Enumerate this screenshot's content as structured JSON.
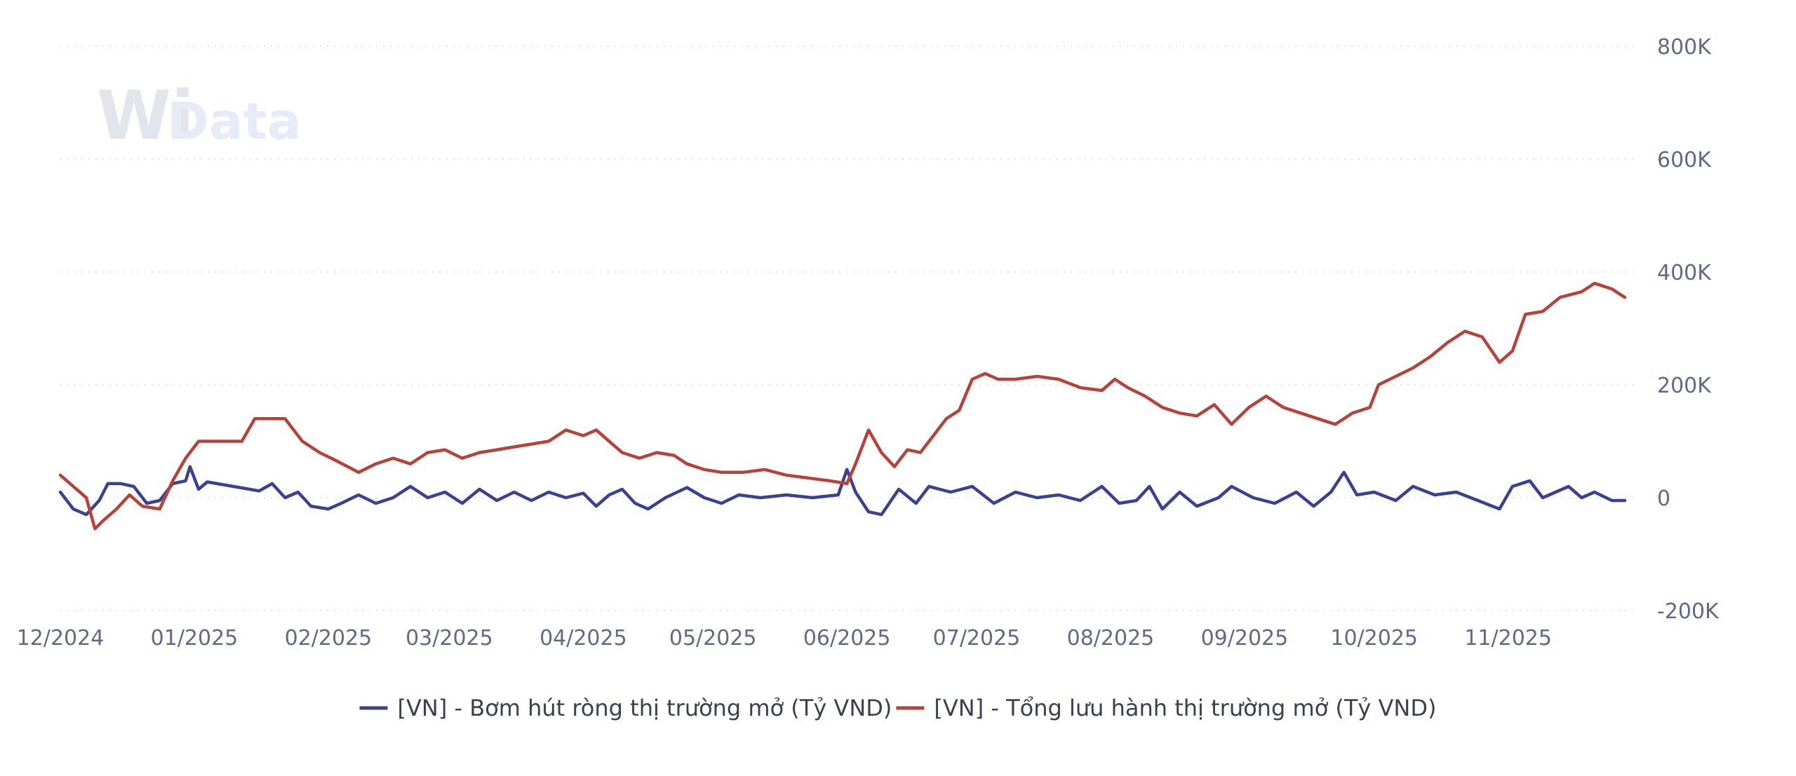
{
  "watermark": {
    "part1": "Wi",
    "part2": "Data"
  },
  "chart_data": {
    "type": "line",
    "ylim": [
      -200000,
      800000
    ],
    "y_ticks": [
      800000,
      600000,
      400000,
      200000,
      0,
      -200000
    ],
    "y_tick_labels": [
      "800K",
      "600K",
      "400K",
      "200K",
      "0",
      "-200K"
    ],
    "x_range": [
      "2024-12-01",
      "2025-11-28"
    ],
    "x_ticks": [
      "2024-12-01",
      "2025-01-01",
      "2025-02-01",
      "2025-03-01",
      "2025-04-01",
      "2025-05-01",
      "2025-06-01",
      "2025-07-01",
      "2025-08-01",
      "2025-09-01",
      "2025-10-01",
      "2025-11-01"
    ],
    "x_tick_labels": [
      "12/2024",
      "01/2025",
      "02/2025",
      "03/2025",
      "04/2025",
      "05/2025",
      "06/2025",
      "07/2025",
      "08/2025",
      "09/2025",
      "10/2025",
      "11/2025"
    ],
    "grid": true,
    "legend_position": "bottom",
    "series": [
      {
        "name": "[VN] - Bơm hút ròng thị trường mở (Tỷ VND)",
        "color": "#3b4191",
        "points": [
          [
            "2024-12-01",
            10000
          ],
          [
            "2024-12-04",
            -20000
          ],
          [
            "2024-12-07",
            -30000
          ],
          [
            "2024-12-10",
            -5000
          ],
          [
            "2024-12-12",
            25000
          ],
          [
            "2024-12-15",
            25000
          ],
          [
            "2024-12-18",
            20000
          ],
          [
            "2024-12-21",
            -10000
          ],
          [
            "2024-12-24",
            -5000
          ],
          [
            "2024-12-27",
            25000
          ],
          [
            "2024-12-30",
            30000
          ],
          [
            "2024-12-31",
            55000
          ],
          [
            "2025-01-02",
            15000
          ],
          [
            "2025-01-04",
            28000
          ],
          [
            "2025-01-10",
            20000
          ],
          [
            "2025-01-16",
            12000
          ],
          [
            "2025-01-19",
            25000
          ],
          [
            "2025-01-22",
            0
          ],
          [
            "2025-01-25",
            10000
          ],
          [
            "2025-01-28",
            -15000
          ],
          [
            "2025-02-01",
            -20000
          ],
          [
            "2025-02-04",
            -10000
          ],
          [
            "2025-02-08",
            5000
          ],
          [
            "2025-02-12",
            -10000
          ],
          [
            "2025-02-16",
            0
          ],
          [
            "2025-02-20",
            20000
          ],
          [
            "2025-02-24",
            0
          ],
          [
            "2025-02-28",
            10000
          ],
          [
            "2025-03-04",
            -10000
          ],
          [
            "2025-03-08",
            15000
          ],
          [
            "2025-03-12",
            -5000
          ],
          [
            "2025-03-16",
            10000
          ],
          [
            "2025-03-20",
            -5000
          ],
          [
            "2025-03-24",
            10000
          ],
          [
            "2025-03-28",
            0
          ],
          [
            "2025-04-01",
            8000
          ],
          [
            "2025-04-04",
            -15000
          ],
          [
            "2025-04-07",
            5000
          ],
          [
            "2025-04-10",
            15000
          ],
          [
            "2025-04-13",
            -10000
          ],
          [
            "2025-04-16",
            -20000
          ],
          [
            "2025-04-20",
            0
          ],
          [
            "2025-04-25",
            18000
          ],
          [
            "2025-04-29",
            0
          ],
          [
            "2025-05-03",
            -10000
          ],
          [
            "2025-05-07",
            5000
          ],
          [
            "2025-05-12",
            0
          ],
          [
            "2025-05-18",
            5000
          ],
          [
            "2025-05-24",
            0
          ],
          [
            "2025-05-30",
            5000
          ],
          [
            "2025-06-01",
            50000
          ],
          [
            "2025-06-03",
            10000
          ],
          [
            "2025-06-06",
            -25000
          ],
          [
            "2025-06-09",
            -30000
          ],
          [
            "2025-06-13",
            15000
          ],
          [
            "2025-06-17",
            -10000
          ],
          [
            "2025-06-20",
            20000
          ],
          [
            "2025-06-25",
            10000
          ],
          [
            "2025-06-30",
            20000
          ],
          [
            "2025-07-05",
            -10000
          ],
          [
            "2025-07-10",
            10000
          ],
          [
            "2025-07-15",
            0
          ],
          [
            "2025-07-20",
            5000
          ],
          [
            "2025-07-25",
            -5000
          ],
          [
            "2025-07-30",
            20000
          ],
          [
            "2025-08-03",
            -10000
          ],
          [
            "2025-08-07",
            -5000
          ],
          [
            "2025-08-10",
            20000
          ],
          [
            "2025-08-13",
            -20000
          ],
          [
            "2025-08-17",
            10000
          ],
          [
            "2025-08-21",
            -15000
          ],
          [
            "2025-08-26",
            0
          ],
          [
            "2025-08-29",
            20000
          ],
          [
            "2025-09-03",
            0
          ],
          [
            "2025-09-08",
            -10000
          ],
          [
            "2025-09-13",
            10000
          ],
          [
            "2025-09-17",
            -15000
          ],
          [
            "2025-09-21",
            10000
          ],
          [
            "2025-09-24",
            45000
          ],
          [
            "2025-09-27",
            5000
          ],
          [
            "2025-10-01",
            10000
          ],
          [
            "2025-10-06",
            -5000
          ],
          [
            "2025-10-10",
            20000
          ],
          [
            "2025-10-15",
            5000
          ],
          [
            "2025-10-20",
            10000
          ],
          [
            "2025-10-25",
            -5000
          ],
          [
            "2025-10-30",
            -20000
          ],
          [
            "2025-11-02",
            20000
          ],
          [
            "2025-11-06",
            30000
          ],
          [
            "2025-11-09",
            0
          ],
          [
            "2025-11-12",
            10000
          ],
          [
            "2025-11-15",
            20000
          ],
          [
            "2025-11-18",
            0
          ],
          [
            "2025-11-21",
            10000
          ],
          [
            "2025-11-25",
            -5000
          ],
          [
            "2025-11-28",
            -5000
          ]
        ]
      },
      {
        "name": "[VN] - Tổng lưu hành thị trường mở (Tỷ VND)",
        "color": "#b5423b",
        "points": [
          [
            "2024-12-01",
            40000
          ],
          [
            "2024-12-04",
            20000
          ],
          [
            "2024-12-07",
            0
          ],
          [
            "2024-12-09",
            -55000
          ],
          [
            "2024-12-11",
            -40000
          ],
          [
            "2024-12-14",
            -20000
          ],
          [
            "2024-12-17",
            5000
          ],
          [
            "2024-12-20",
            -15000
          ],
          [
            "2024-12-24",
            -20000
          ],
          [
            "2024-12-27",
            30000
          ],
          [
            "2024-12-30",
            70000
          ],
          [
            "2025-01-02",
            100000
          ],
          [
            "2025-01-07",
            100000
          ],
          [
            "2025-01-12",
            100000
          ],
          [
            "2025-01-15",
            140000
          ],
          [
            "2025-01-18",
            140000
          ],
          [
            "2025-01-22",
            140000
          ],
          [
            "2025-01-26",
            100000
          ],
          [
            "2025-01-30",
            80000
          ],
          [
            "2025-02-03",
            65000
          ],
          [
            "2025-02-08",
            45000
          ],
          [
            "2025-02-12",
            60000
          ],
          [
            "2025-02-16",
            70000
          ],
          [
            "2025-02-20",
            60000
          ],
          [
            "2025-02-24",
            80000
          ],
          [
            "2025-02-28",
            85000
          ],
          [
            "2025-03-04",
            70000
          ],
          [
            "2025-03-08",
            80000
          ],
          [
            "2025-03-12",
            85000
          ],
          [
            "2025-03-16",
            90000
          ],
          [
            "2025-03-20",
            95000
          ],
          [
            "2025-03-24",
            100000
          ],
          [
            "2025-03-28",
            120000
          ],
          [
            "2025-04-01",
            110000
          ],
          [
            "2025-04-04",
            120000
          ],
          [
            "2025-04-07",
            100000
          ],
          [
            "2025-04-10",
            80000
          ],
          [
            "2025-04-14",
            70000
          ],
          [
            "2025-04-18",
            80000
          ],
          [
            "2025-04-22",
            75000
          ],
          [
            "2025-04-25",
            60000
          ],
          [
            "2025-04-29",
            50000
          ],
          [
            "2025-05-03",
            45000
          ],
          [
            "2025-05-08",
            45000
          ],
          [
            "2025-05-13",
            50000
          ],
          [
            "2025-05-18",
            40000
          ],
          [
            "2025-05-23",
            35000
          ],
          [
            "2025-05-28",
            30000
          ],
          [
            "2025-06-01",
            25000
          ],
          [
            "2025-06-03",
            60000
          ],
          [
            "2025-06-06",
            120000
          ],
          [
            "2025-06-09",
            80000
          ],
          [
            "2025-06-12",
            55000
          ],
          [
            "2025-06-15",
            85000
          ],
          [
            "2025-06-18",
            80000
          ],
          [
            "2025-06-21",
            110000
          ],
          [
            "2025-06-24",
            140000
          ],
          [
            "2025-06-27",
            155000
          ],
          [
            "2025-06-30",
            210000
          ],
          [
            "2025-07-03",
            220000
          ],
          [
            "2025-07-06",
            210000
          ],
          [
            "2025-07-10",
            210000
          ],
          [
            "2025-07-15",
            215000
          ],
          [
            "2025-07-20",
            210000
          ],
          [
            "2025-07-25",
            195000
          ],
          [
            "2025-07-30",
            190000
          ],
          [
            "2025-08-02",
            210000
          ],
          [
            "2025-08-05",
            195000
          ],
          [
            "2025-08-09",
            180000
          ],
          [
            "2025-08-13",
            160000
          ],
          [
            "2025-08-17",
            150000
          ],
          [
            "2025-08-21",
            145000
          ],
          [
            "2025-08-25",
            165000
          ],
          [
            "2025-08-29",
            130000
          ],
          [
            "2025-09-02",
            160000
          ],
          [
            "2025-09-06",
            180000
          ],
          [
            "2025-09-10",
            160000
          ],
          [
            "2025-09-14",
            150000
          ],
          [
            "2025-09-18",
            140000
          ],
          [
            "2025-09-22",
            130000
          ],
          [
            "2025-09-26",
            150000
          ],
          [
            "2025-09-30",
            160000
          ],
          [
            "2025-10-02",
            200000
          ],
          [
            "2025-10-06",
            215000
          ],
          [
            "2025-10-10",
            230000
          ],
          [
            "2025-10-14",
            250000
          ],
          [
            "2025-10-18",
            275000
          ],
          [
            "2025-10-22",
            295000
          ],
          [
            "2025-10-26",
            285000
          ],
          [
            "2025-10-30",
            240000
          ],
          [
            "2025-11-02",
            260000
          ],
          [
            "2025-11-05",
            325000
          ],
          [
            "2025-11-09",
            330000
          ],
          [
            "2025-11-13",
            355000
          ],
          [
            "2025-11-18",
            365000
          ],
          [
            "2025-11-21",
            380000
          ],
          [
            "2025-11-25",
            370000
          ],
          [
            "2025-11-28",
            355000
          ]
        ]
      }
    ]
  }
}
